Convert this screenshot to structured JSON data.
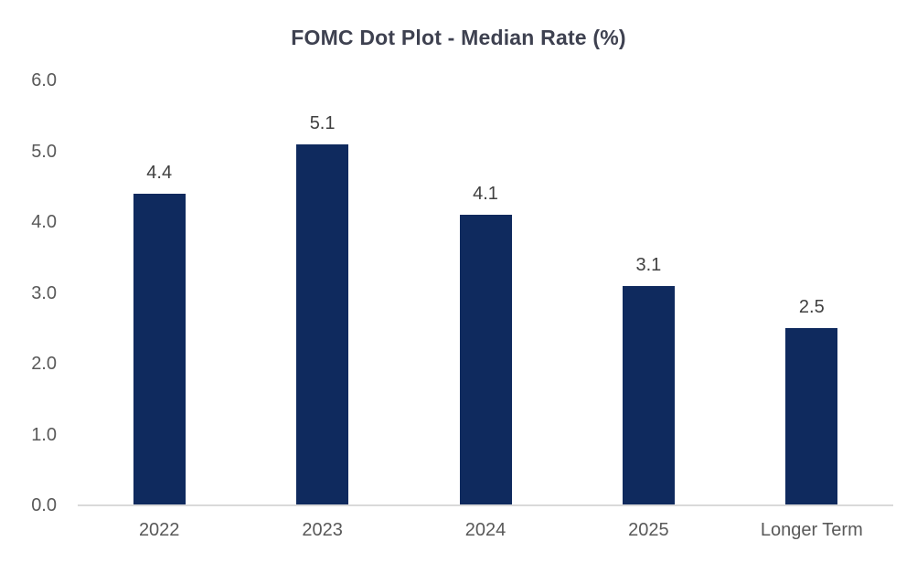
{
  "chart_data": {
    "type": "bar",
    "title": "FOMC Dot Plot - Median Rate (%)",
    "categories": [
      "2022",
      "2023",
      "2024",
      "2025",
      "Longer Term"
    ],
    "values": [
      4.4,
      5.1,
      4.1,
      3.1,
      2.5
    ],
    "data_labels": [
      "4.4",
      "5.1",
      "4.1",
      "3.1",
      "2.5"
    ],
    "xlabel": "",
    "ylabel": "",
    "ylim": [
      0,
      6
    ],
    "ytick_interval": 1.0,
    "ytick_labels": [
      "0.0",
      "1.0",
      "2.0",
      "3.0",
      "4.0",
      "5.0",
      "6.0"
    ],
    "grid": false,
    "legend": "none"
  },
  "colors": {
    "bar": "#0f2a5e",
    "title_text": "#3e4150",
    "axis_text": "#595959",
    "data_label_text": "#404040",
    "axis_line": "#d9d9d9",
    "background": "#ffffff"
  }
}
